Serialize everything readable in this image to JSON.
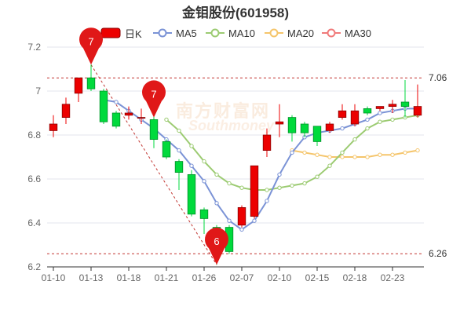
{
  "chart_data": {
    "type": "candlestick",
    "title": "金钼股份(601958)",
    "legend": [
      {
        "name": "日K",
        "color": "#ec0000"
      },
      {
        "name": "MA5",
        "color": "#7b93d6"
      },
      {
        "name": "MA10",
        "color": "#9ccb72"
      },
      {
        "name": "MA20",
        "color": "#f5c56b"
      },
      {
        "name": "MA30",
        "color": "#f07a7a"
      }
    ],
    "ylim": [
      6.2,
      7.2
    ],
    "yticks": [
      "6.2",
      "6.4",
      "6.6",
      "6.8",
      "7",
      "7.2"
    ],
    "xtick_labels": [
      "01-10",
      "01-13",
      "01-18",
      "01-21",
      "01-26",
      "02-07",
      "02-10",
      "02-15",
      "02-18",
      "02-23"
    ],
    "xtick_index": [
      0,
      3,
      6,
      9,
      12,
      15,
      18,
      21,
      24,
      27
    ],
    "colors": {
      "up": "#ec0000",
      "down": "#00da3c",
      "grid": "#e3e6ee",
      "axis": "#666666",
      "ref": "#c23531",
      "pin": "#e01818"
    },
    "ohlc": [
      [
        6.82,
        6.85,
        6.79,
        6.89
      ],
      [
        6.88,
        6.94,
        6.85,
        6.97
      ],
      [
        6.99,
        7.06,
        6.95,
        7.06
      ],
      [
        7.06,
        7.01,
        7.0,
        7.12
      ],
      [
        7.0,
        6.86,
        6.85,
        7.01
      ],
      [
        6.9,
        6.84,
        6.83,
        6.91
      ],
      [
        6.89,
        6.9,
        6.87,
        6.93
      ],
      [
        6.88,
        6.88,
        6.85,
        6.92
      ],
      [
        6.87,
        6.78,
        6.74,
        6.9
      ],
      [
        6.77,
        6.7,
        6.69,
        6.78
      ],
      [
        6.68,
        6.63,
        6.55,
        6.69
      ],
      [
        6.62,
        6.44,
        6.43,
        6.64
      ],
      [
        6.46,
        6.42,
        6.35,
        6.47
      ],
      [
        6.38,
        6.26,
        6.21,
        6.39
      ],
      [
        6.38,
        6.27,
        6.26,
        6.39
      ],
      [
        6.39,
        6.47,
        6.38,
        6.48
      ],
      [
        6.43,
        6.66,
        6.42,
        6.66
      ],
      [
        6.73,
        6.8,
        6.7,
        6.83
      ],
      [
        6.85,
        6.86,
        6.79,
        6.94
      ],
      [
        6.88,
        6.81,
        6.77,
        6.89
      ],
      [
        6.85,
        6.81,
        6.79,
        6.86
      ],
      [
        6.84,
        6.77,
        6.75,
        6.84
      ],
      [
        6.82,
        6.85,
        6.81,
        6.86
      ],
      [
        6.88,
        6.91,
        6.87,
        6.94
      ],
      [
        6.85,
        6.91,
        6.84,
        6.94
      ],
      [
        6.92,
        6.9,
        6.89,
        6.93
      ],
      [
        6.92,
        6.93,
        6.91,
        6.93
      ],
      [
        6.93,
        6.94,
        6.9,
        6.96
      ],
      [
        6.95,
        6.93,
        6.88,
        7.05
      ],
      [
        6.89,
        6.93,
        6.88,
        7.03
      ]
    ],
    "ma5": [
      null,
      null,
      null,
      null,
      6.96,
      6.95,
      6.91,
      6.87,
      6.83,
      6.78,
      6.73,
      6.66,
      6.59,
      6.49,
      6.41,
      6.37,
      6.41,
      6.5,
      6.62,
      6.72,
      6.79,
      6.81,
      6.82,
      6.83,
      6.85,
      6.87,
      6.9,
      6.91,
      6.92,
      6.92
    ],
    "ma10": [
      null,
      null,
      null,
      null,
      null,
      null,
      null,
      null,
      null,
      6.87,
      6.82,
      6.75,
      6.68,
      6.62,
      6.58,
      6.56,
      6.55,
      6.55,
      6.56,
      6.57,
      6.58,
      6.61,
      6.66,
      6.72,
      6.78,
      6.83,
      6.86,
      6.87,
      6.88,
      6.89
    ],
    "ma20": [
      null,
      null,
      null,
      null,
      null,
      null,
      null,
      null,
      null,
      null,
      null,
      null,
      null,
      null,
      null,
      null,
      null,
      null,
      null,
      6.73,
      6.72,
      6.71,
      6.7,
      6.7,
      6.7,
      6.7,
      6.71,
      6.71,
      6.72,
      6.73
    ],
    "ma30": [],
    "ref_lines": [
      {
        "value": 7.06,
        "label": "7.06"
      },
      {
        "value": 6.26,
        "label": "6.26"
      }
    ],
    "pins": [
      {
        "index": 3,
        "value": 7.12,
        "label": "7"
      },
      {
        "index": 8,
        "value": 6.88,
        "label": "7"
      },
      {
        "index": 13,
        "value": 6.21,
        "label": "6"
      }
    ]
  },
  "watermark": {
    "cn": "南方财富网",
    "en": "Southmoney"
  }
}
